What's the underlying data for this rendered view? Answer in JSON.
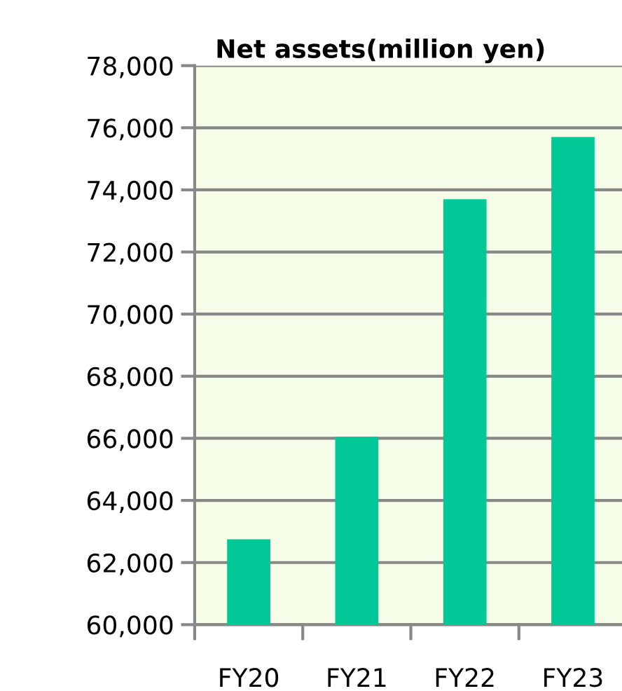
{
  "chart_data": {
    "type": "bar",
    "title": "Net assets(million yen)",
    "categories": [
      "FY20",
      "FY21",
      "FY22",
      "FY23"
    ],
    "values": [
      62750,
      66050,
      73700,
      75700
    ],
    "color": "#00c896",
    "ylim": [
      60000,
      78000
    ],
    "yticks": [
      {
        "value": 60000,
        "label": "60,000"
      },
      {
        "value": 62000,
        "label": "62,000"
      },
      {
        "value": 64000,
        "label": "64,000"
      },
      {
        "value": 66000,
        "label": "66,000"
      },
      {
        "value": 68000,
        "label": "68,000"
      },
      {
        "value": 70000,
        "label": "70,000"
      },
      {
        "value": 72000,
        "label": "72,000"
      },
      {
        "value": 74000,
        "label": "74,000"
      },
      {
        "value": 76000,
        "label": "76,000"
      },
      {
        "value": 78000,
        "label": "78,000"
      }
    ],
    "grid": "y"
  }
}
